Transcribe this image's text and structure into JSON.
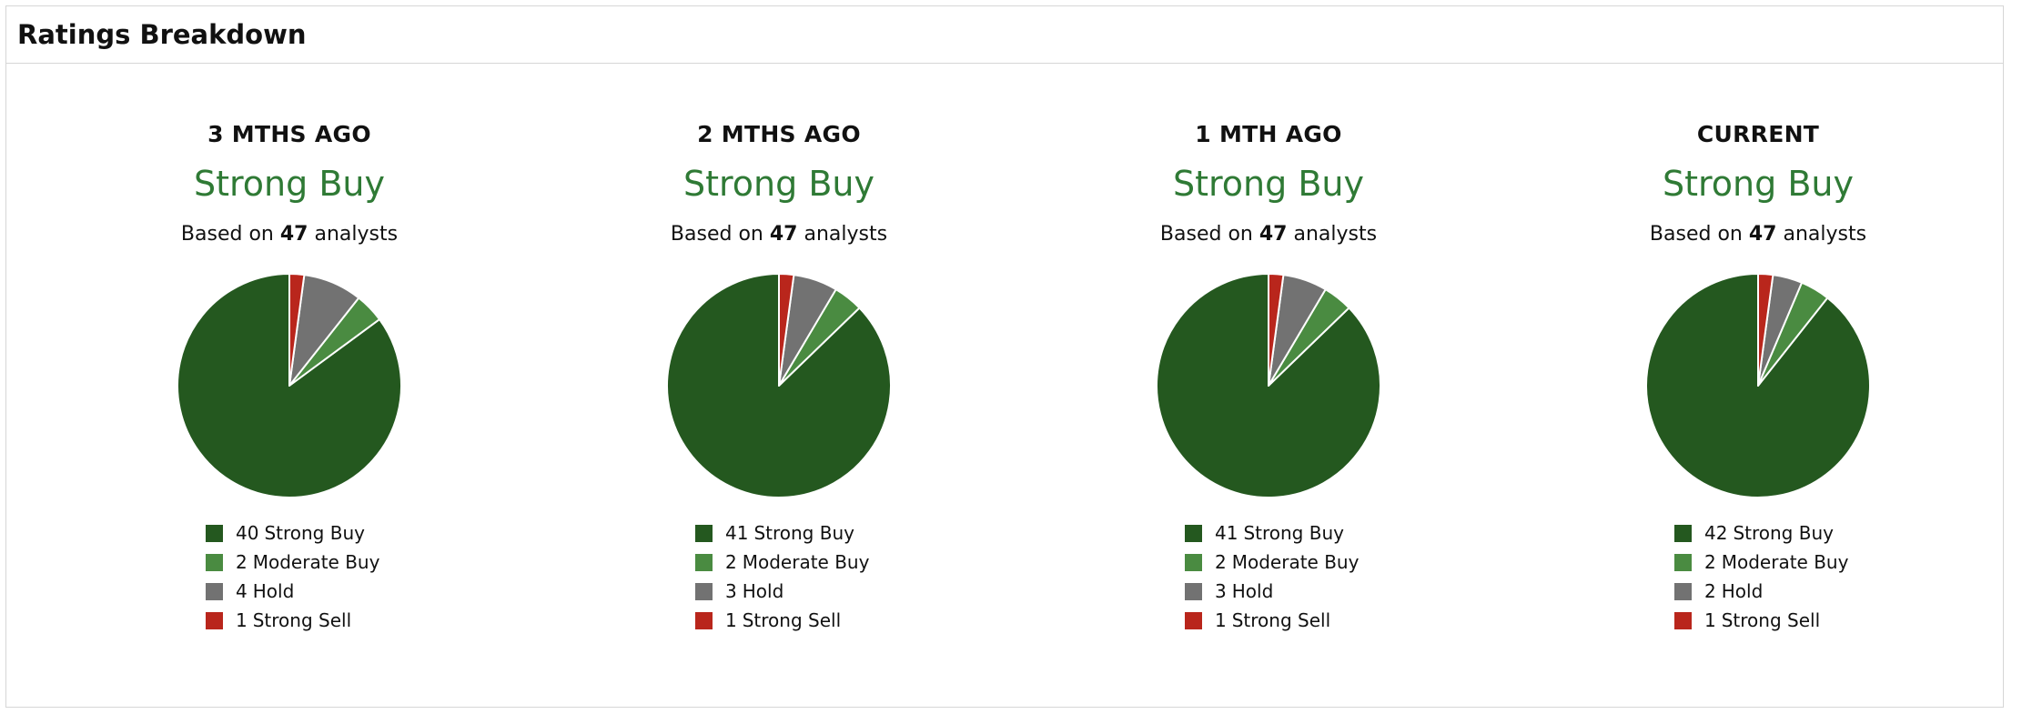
{
  "header": {
    "title": "Ratings Breakdown"
  },
  "based_on": {
    "prefix": "Based on",
    "suffix": "analysts"
  },
  "colors": {
    "Strong Buy": "#24581f",
    "Moderate Buy": "#4a8b41",
    "Hold": "#727272",
    "Strong Sell": "#b9261c",
    "consensus_text": "#2f7a35"
  },
  "chart_data": [
    {
      "type": "pie",
      "title": "3 MTHS AGO",
      "consensus": "Strong Buy",
      "analysts": "47",
      "slices": [
        {
          "label": "Strong Buy",
          "value": 40
        },
        {
          "label": "Moderate Buy",
          "value": 2
        },
        {
          "label": "Hold",
          "value": 4
        },
        {
          "label": "Strong Sell",
          "value": 1
        }
      ]
    },
    {
      "type": "pie",
      "title": "2 MTHS AGO",
      "consensus": "Strong Buy",
      "analysts": "47",
      "slices": [
        {
          "label": "Strong Buy",
          "value": 41
        },
        {
          "label": "Moderate Buy",
          "value": 2
        },
        {
          "label": "Hold",
          "value": 3
        },
        {
          "label": "Strong Sell",
          "value": 1
        }
      ]
    },
    {
      "type": "pie",
      "title": "1 MTH AGO",
      "consensus": "Strong Buy",
      "analysts": "47",
      "slices": [
        {
          "label": "Strong Buy",
          "value": 41
        },
        {
          "label": "Moderate Buy",
          "value": 2
        },
        {
          "label": "Hold",
          "value": 3
        },
        {
          "label": "Strong Sell",
          "value": 1
        }
      ]
    },
    {
      "type": "pie",
      "title": "CURRENT",
      "consensus": "Strong Buy",
      "analysts": "47",
      "slices": [
        {
          "label": "Strong Buy",
          "value": 42
        },
        {
          "label": "Moderate Buy",
          "value": 2
        },
        {
          "label": "Hold",
          "value": 2
        },
        {
          "label": "Strong Sell",
          "value": 1
        }
      ]
    }
  ]
}
